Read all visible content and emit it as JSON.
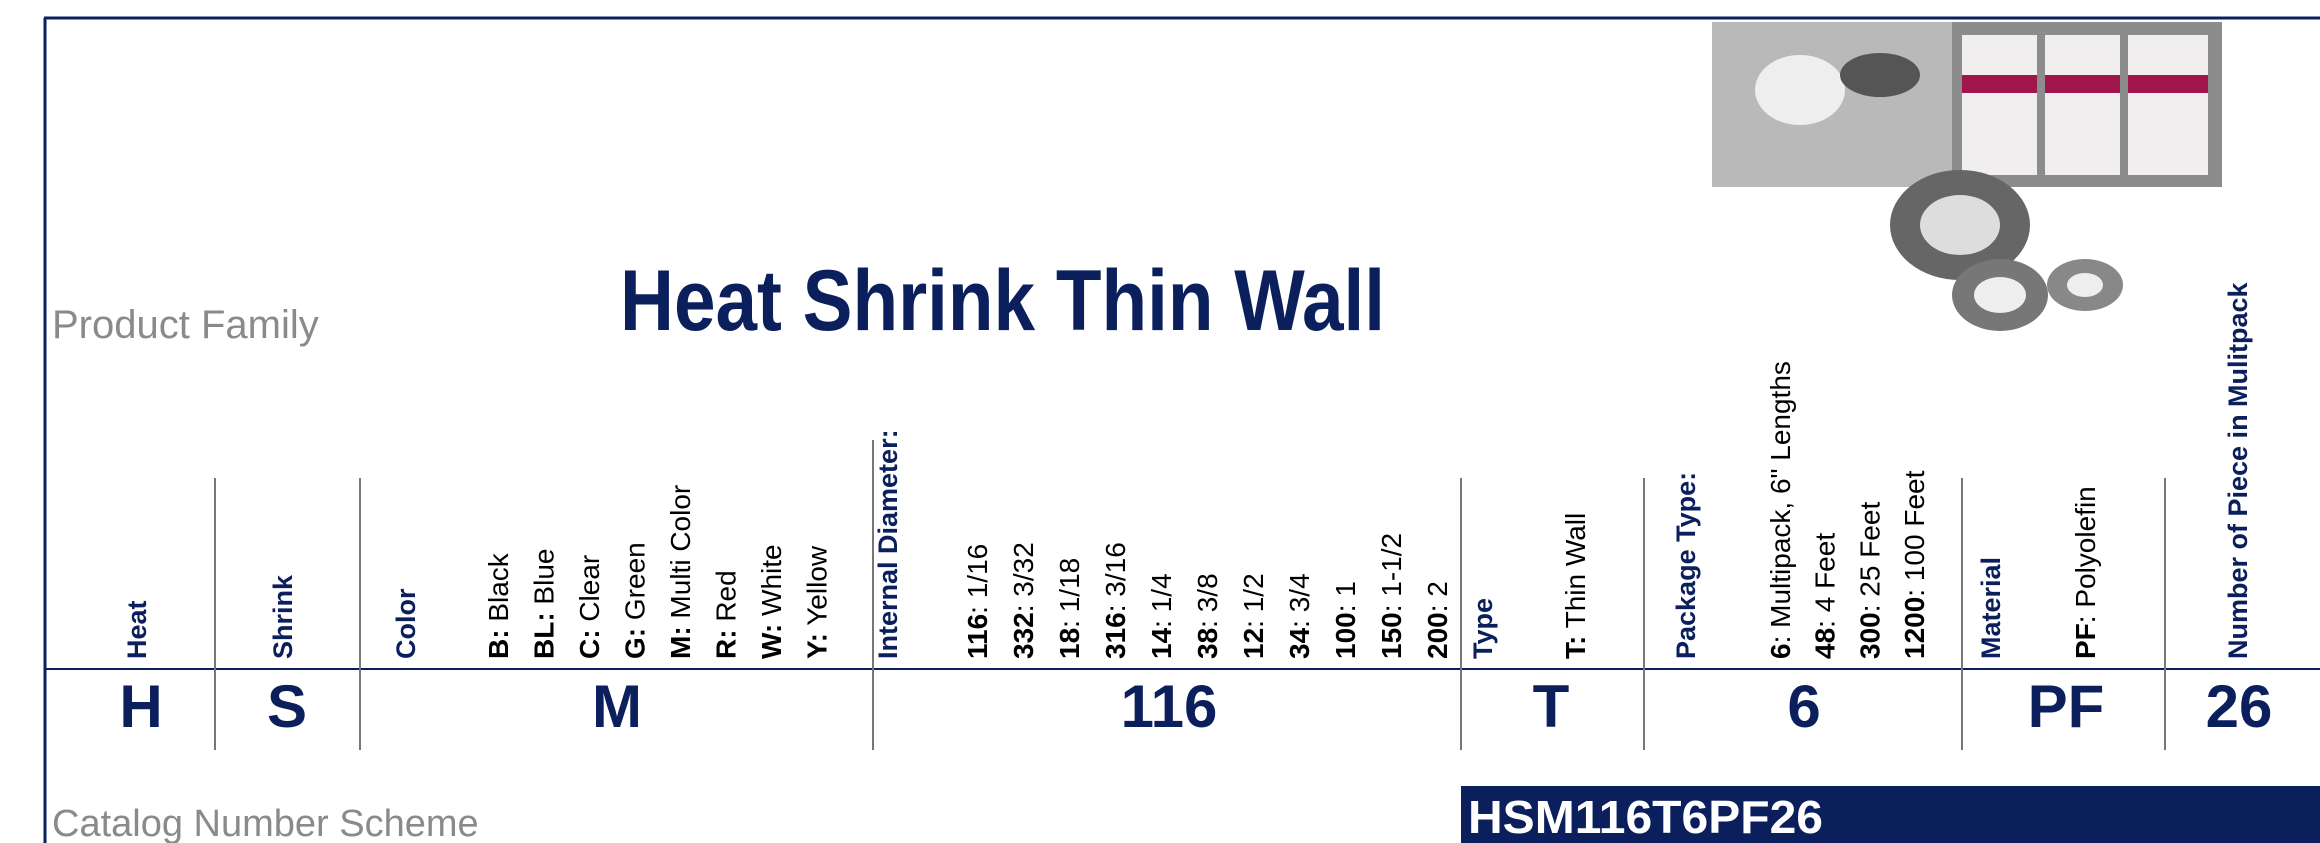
{
  "title": "Heat Shrink Thin Wall",
  "product_family_label": "Product Family",
  "catalog_scheme_label": "Catalog Number Scheme",
  "catalog_number": "HSM116T6PF26",
  "columns": [
    {
      "header": "Heat",
      "value": "H"
    },
    {
      "header": "Shrink",
      "value": "S"
    },
    {
      "header": "Color",
      "value": "M",
      "options": [
        {
          "code": "B:",
          "text": " Black"
        },
        {
          "code": "BL:",
          "text": " Blue"
        },
        {
          "code": "C:",
          "text": " Clear"
        },
        {
          "code": "G:",
          "text": " Green"
        },
        {
          "code": "M:",
          "text": " Multi Color"
        },
        {
          "code": "R:",
          "text": " Red"
        },
        {
          "code": "W:",
          "text": " White"
        },
        {
          "code": "Y:",
          "text": " Yellow"
        }
      ]
    },
    {
      "header": "Internal Diameter:",
      "value": "116",
      "options": [
        {
          "code": "116",
          "text": ": 1/16"
        },
        {
          "code": "332",
          "text": ": 3/32"
        },
        {
          "code": "18",
          "text": ": 1/18"
        },
        {
          "code": "316",
          "text": ": 3/16"
        },
        {
          "code": "14",
          "text": ": 1/4"
        },
        {
          "code": "38",
          "text": ": 3/8"
        },
        {
          "code": "12",
          "text": ": 1/2"
        },
        {
          "code": "34",
          "text": ": 3/4"
        },
        {
          "code": "100",
          "text": ": 1"
        },
        {
          "code": "150",
          "text": ": 1-1/2"
        },
        {
          "code": "200",
          "text": ": 2"
        }
      ]
    },
    {
      "header": "Type",
      "value": "T",
      "options": [
        {
          "code": "T:",
          "text": " Thin Wall"
        }
      ]
    },
    {
      "header": "Package Type:",
      "value": "6",
      "options": [
        {
          "code": "6",
          "text": ":  Multipack, 6\" Lengths"
        },
        {
          "code": "48",
          "text": ": 4 Feet"
        },
        {
          "code": "300",
          "text": ": 25 Feet"
        },
        {
          "code": "1200",
          "text": ": 100 Feet"
        }
      ]
    },
    {
      "header": "Material",
      "value": "PF",
      "options": [
        {
          "code": "PF",
          "text": ": Polyolefin"
        }
      ]
    },
    {
      "header": "Number of Piece in Mulitpack",
      "value": "26"
    }
  ]
}
